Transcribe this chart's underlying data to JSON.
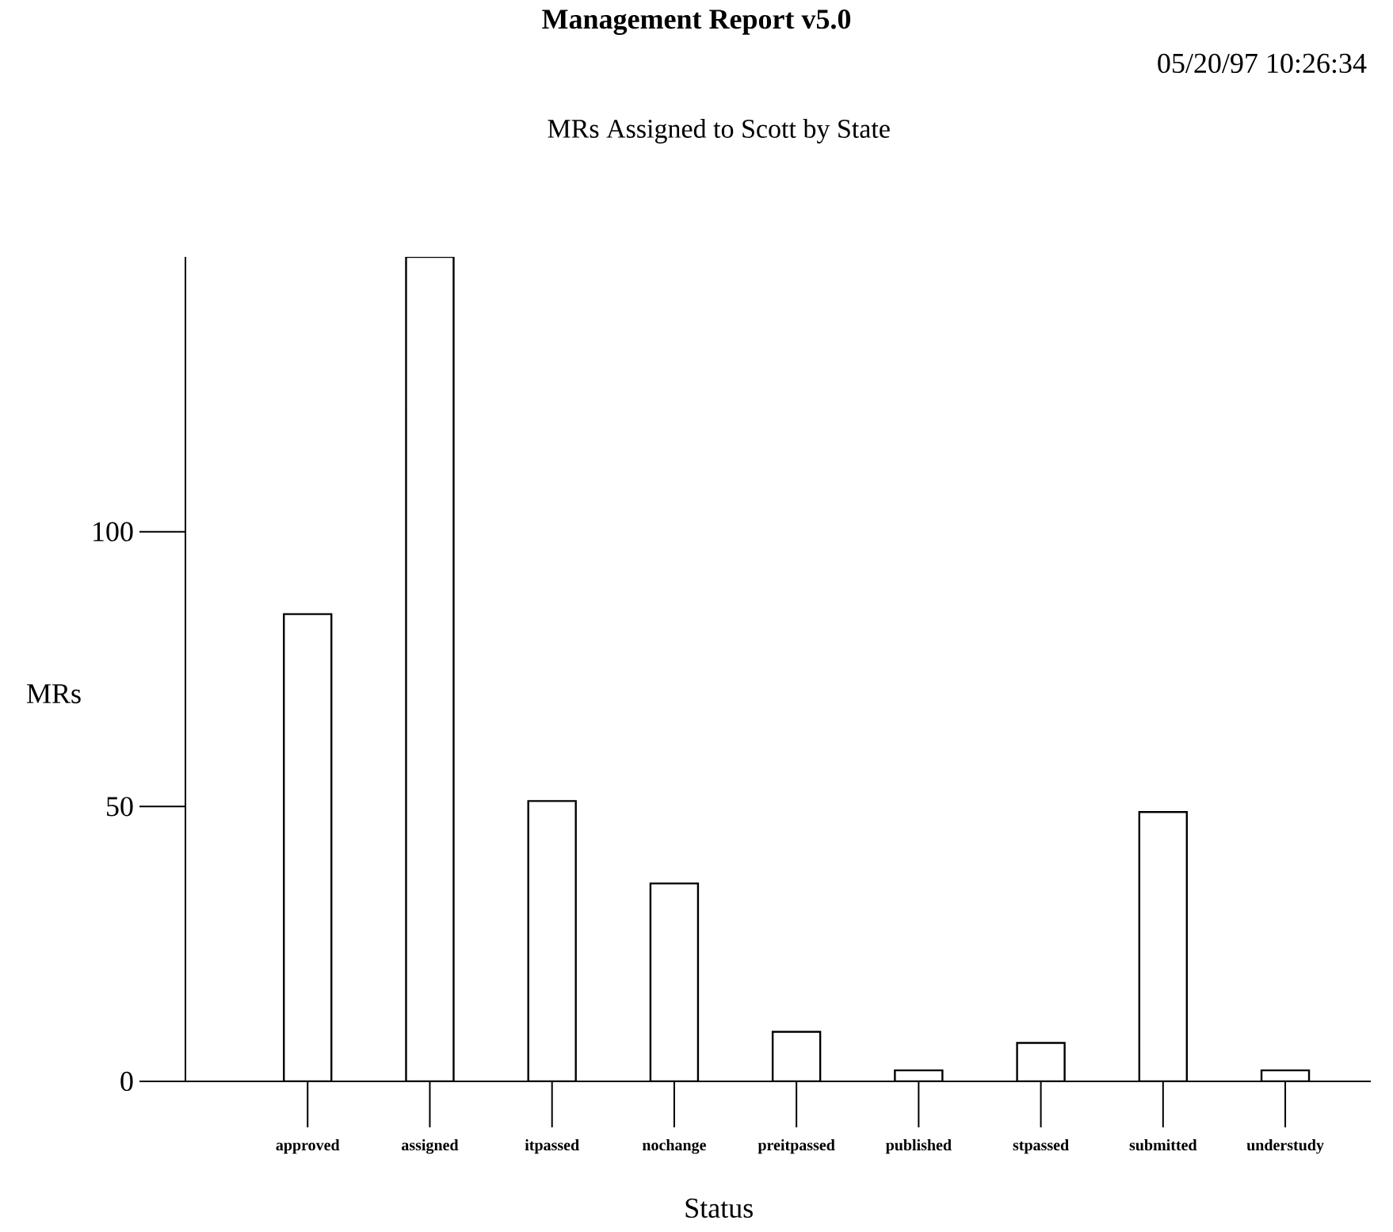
{
  "chart_data": {
    "type": "bar",
    "title": "MRs Assigned to Scott by State",
    "xlabel": "Status",
    "ylabel": "MRs",
    "annotations": [
      "Management Report v5.0",
      "05/20/97 10:26:34"
    ],
    "categories": [
      "approved",
      "assigned",
      "itpassed",
      "nochange",
      "preitpassed",
      "published",
      "stpassed",
      "submitted",
      "understudy"
    ],
    "values": [
      85,
      150,
      51,
      36,
      9,
      2,
      7,
      49,
      2
    ],
    "color": "#ffffff",
    "ylim": [
      0,
      150
    ],
    "yticks": [
      0,
      50,
      100
    ]
  }
}
